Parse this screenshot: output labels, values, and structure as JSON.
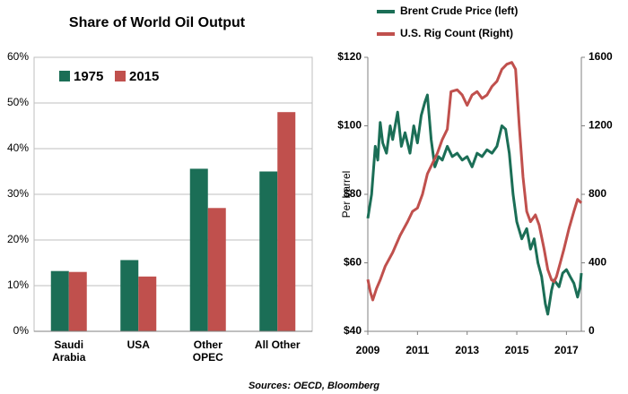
{
  "chart_data": [
    {
      "type": "bar",
      "title": "Share of World Oil Output",
      "categories": [
        "Saudi Arabia",
        "USA",
        "Other OPEC",
        "All Other"
      ],
      "series": [
        {
          "name": "1975",
          "color": "#1b6e56",
          "values": [
            13.2,
            15.6,
            35.6,
            35.0
          ]
        },
        {
          "name": "2015",
          "color": "#c0504d",
          "values": [
            13.0,
            12.0,
            27.0,
            48.0
          ]
        }
      ],
      "ylim": [
        0,
        60
      ],
      "yticks": [
        {
          "value": 0,
          "label": "0%"
        },
        {
          "value": 10,
          "label": "10%"
        },
        {
          "value": 20,
          "label": "20%"
        },
        {
          "value": 30,
          "label": "30%"
        },
        {
          "value": 40,
          "label": "40%"
        },
        {
          "value": 50,
          "label": "50%"
        },
        {
          "value": 60,
          "label": "60%"
        }
      ],
      "grid": true,
      "legend": "upper left"
    },
    {
      "type": "line",
      "ylabel": "Per barrel",
      "xlim": [
        2009,
        2017.6
      ],
      "xticks": [
        2009,
        2011,
        2013,
        2015,
        2017
      ],
      "ylim": [
        40,
        120
      ],
      "yticks": [
        {
          "value": 40,
          "label": "$40"
        },
        {
          "value": 60,
          "label": "$60"
        },
        {
          "value": 80,
          "label": "$80"
        },
        {
          "value": 100,
          "label": "$100"
        },
        {
          "value": 120,
          "label": "$120"
        }
      ],
      "y2lim": [
        0,
        1600
      ],
      "y2ticks": [
        0,
        400,
        800,
        1200,
        1600
      ],
      "series": [
        {
          "name": "Brent Crude Price (left)",
          "color": "#1b6e56",
          "axis": "y",
          "x": [
            2009.0,
            2009.15,
            2009.3,
            2009.4,
            2009.5,
            2009.6,
            2009.75,
            2009.9,
            2010.0,
            2010.2,
            2010.35,
            2010.5,
            2010.7,
            2010.85,
            2011.0,
            2011.15,
            2011.3,
            2011.4,
            2011.55,
            2011.7,
            2011.85,
            2012.0,
            2012.2,
            2012.4,
            2012.6,
            2012.8,
            2013.0,
            2013.2,
            2013.4,
            2013.6,
            2013.8,
            2014.0,
            2014.2,
            2014.4,
            2014.55,
            2014.7,
            2014.85,
            2015.0,
            2015.2,
            2015.4,
            2015.55,
            2015.7,
            2015.85,
            2016.0,
            2016.15,
            2016.25,
            2016.4,
            2016.5,
            2016.7,
            2016.85,
            2017.0,
            2017.15,
            2017.3,
            2017.45,
            2017.55,
            2017.6
          ],
          "values": [
            73,
            80,
            94,
            90,
            101,
            95,
            92,
            100,
            96,
            104,
            94,
            98,
            92,
            100,
            95,
            103,
            107,
            109,
            96,
            88,
            91,
            90,
            94,
            91,
            92,
            90,
            91,
            88,
            92,
            91,
            93,
            92,
            94,
            100,
            99,
            92,
            80,
            72,
            67,
            70,
            64,
            67,
            60,
            56,
            48,
            45,
            52,
            55,
            53,
            57,
            58,
            56,
            54,
            50,
            53,
            57
          ]
        },
        {
          "name": "U.S. Rig Count (Right)",
          "color": "#c0504d",
          "axis": "y2",
          "x": [
            2009.0,
            2009.1,
            2009.2,
            2009.35,
            2009.5,
            2009.7,
            2010.0,
            2010.3,
            2010.6,
            2010.8,
            2011.0,
            2011.2,
            2011.4,
            2011.6,
            2011.8,
            2012.0,
            2012.2,
            2012.35,
            2012.6,
            2012.8,
            2013.0,
            2013.2,
            2013.4,
            2013.6,
            2013.8,
            2014.0,
            2014.2,
            2014.4,
            2014.6,
            2014.8,
            2014.95,
            2015.1,
            2015.25,
            2015.4,
            2015.55,
            2015.75,
            2015.9,
            2016.1,
            2016.25,
            2016.4,
            2016.5,
            2016.6,
            2016.75,
            2016.9,
            2017.1,
            2017.3,
            2017.45,
            2017.6
          ],
          "values": [
            303,
            230,
            183,
            250,
            300,
            380,
            460,
            560,
            640,
            700,
            720,
            800,
            920,
            980,
            1040,
            1120,
            1180,
            1400,
            1410,
            1380,
            1320,
            1380,
            1400,
            1360,
            1380,
            1430,
            1460,
            1530,
            1560,
            1570,
            1530,
            1200,
            900,
            700,
            640,
            680,
            620,
            480,
            360,
            300,
            290,
            320,
            400,
            480,
            600,
            700,
            770,
            750
          ]
        }
      ]
    }
  ],
  "source": "Sources: OECD, Bloomberg"
}
